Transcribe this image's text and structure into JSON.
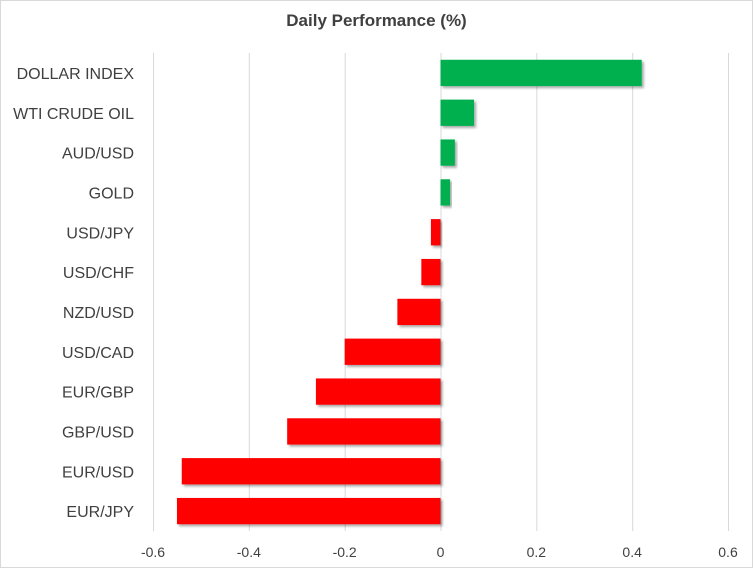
{
  "chart_data": {
    "type": "bar",
    "orientation": "horizontal",
    "title": "Daily Performance  (%)",
    "categories": [
      "DOLLAR INDEX",
      "WTI CRUDE OIL",
      "AUD/USD",
      "GOLD",
      "USD/JPY",
      "USD/CHF",
      "NZD/USD",
      "USD/CAD",
      "EUR/GBP",
      "GBP/USD",
      "EUR/USD",
      "EUR/JPY"
    ],
    "values": [
      0.42,
      0.07,
      0.03,
      0.02,
      -0.02,
      -0.04,
      -0.09,
      -0.2,
      -0.26,
      -0.32,
      -0.54,
      -0.55
    ],
    "xlim": [
      -0.6,
      0.6
    ],
    "xticks": [
      -0.6,
      -0.4,
      -0.2,
      0,
      0.2,
      0.4,
      0.6
    ],
    "xtick_labels": [
      "-0.6",
      "-0.4",
      "-0.2",
      "0",
      "0.2",
      "0.4",
      "0.6"
    ],
    "grid": true,
    "positive_color": "#00b050",
    "negative_color": "#ff0000",
    "xlabel": "",
    "ylabel": ""
  }
}
